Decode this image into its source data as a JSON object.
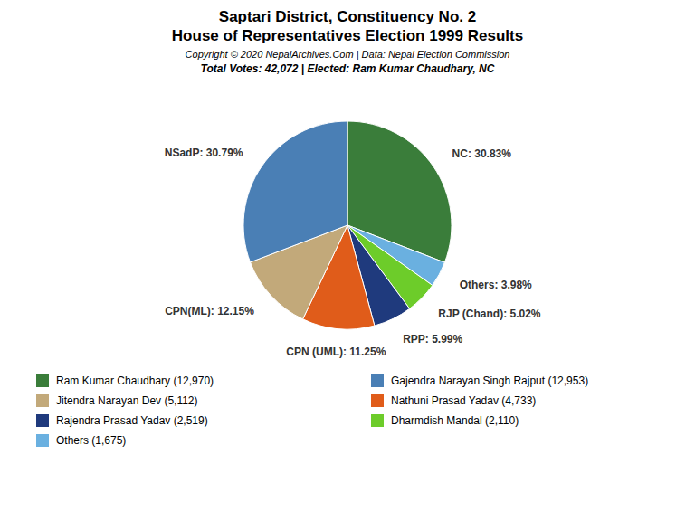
{
  "chart_data": {
    "type": "pie",
    "title": [
      "Saptari District, Constituency No. 2",
      "House of Representatives Election 1999 Results"
    ],
    "annotations": [
      "Copyright © 2020 NepalArchives.Com | Data: Nepal Election Commission"
    ],
    "subtitle": "Total Votes: 42,072 | Elected: Ram Kumar Chaudhary, NC",
    "categories": [
      "NC",
      "Others",
      "RJP (Chand)",
      "RPP",
      "CPN (UML)",
      "CPN(ML)",
      "NSadP"
    ],
    "values": [
      30.83,
      3.98,
      5.02,
      5.99,
      11.25,
      12.15,
      30.79
    ],
    "value_labels": [
      "NC: 30.83%",
      "Others: 3.98%",
      "RJP (Chand): 5.02%",
      "RPP: 5.99%",
      "CPN (UML): 11.25%",
      "CPN(ML): 12.15%",
      "NSadP: 30.79%"
    ],
    "colors": [
      "#3a7d3a",
      "#6ab0e0",
      "#6dcc2a",
      "#1f3a7d",
      "#e05c1a",
      "#c2a97a",
      "#4a7fb5"
    ],
    "data_labels": true,
    "legend_entries": [
      {
        "label": "Ram Kumar Chaudhary (12,970)",
        "color": "#3a7d3a"
      },
      {
        "label": "Jitendra Narayan Dev (5,112)",
        "color": "#c2a97a"
      },
      {
        "label": "Rajendra Prasad Yadav (2,519)",
        "color": "#1f3a7d"
      },
      {
        "label": "Others (1,675)",
        "color": "#6ab0e0"
      },
      {
        "label": "Gajendra Narayan Singh Rajput (12,953)",
        "color": "#4a7fb5"
      },
      {
        "label": "Nathuni Prasad Yadav (4,733)",
        "color": "#e05c1a"
      },
      {
        "label": "Dharmdish Mandal (2,110)",
        "color": "#6dcc2a"
      }
    ]
  }
}
